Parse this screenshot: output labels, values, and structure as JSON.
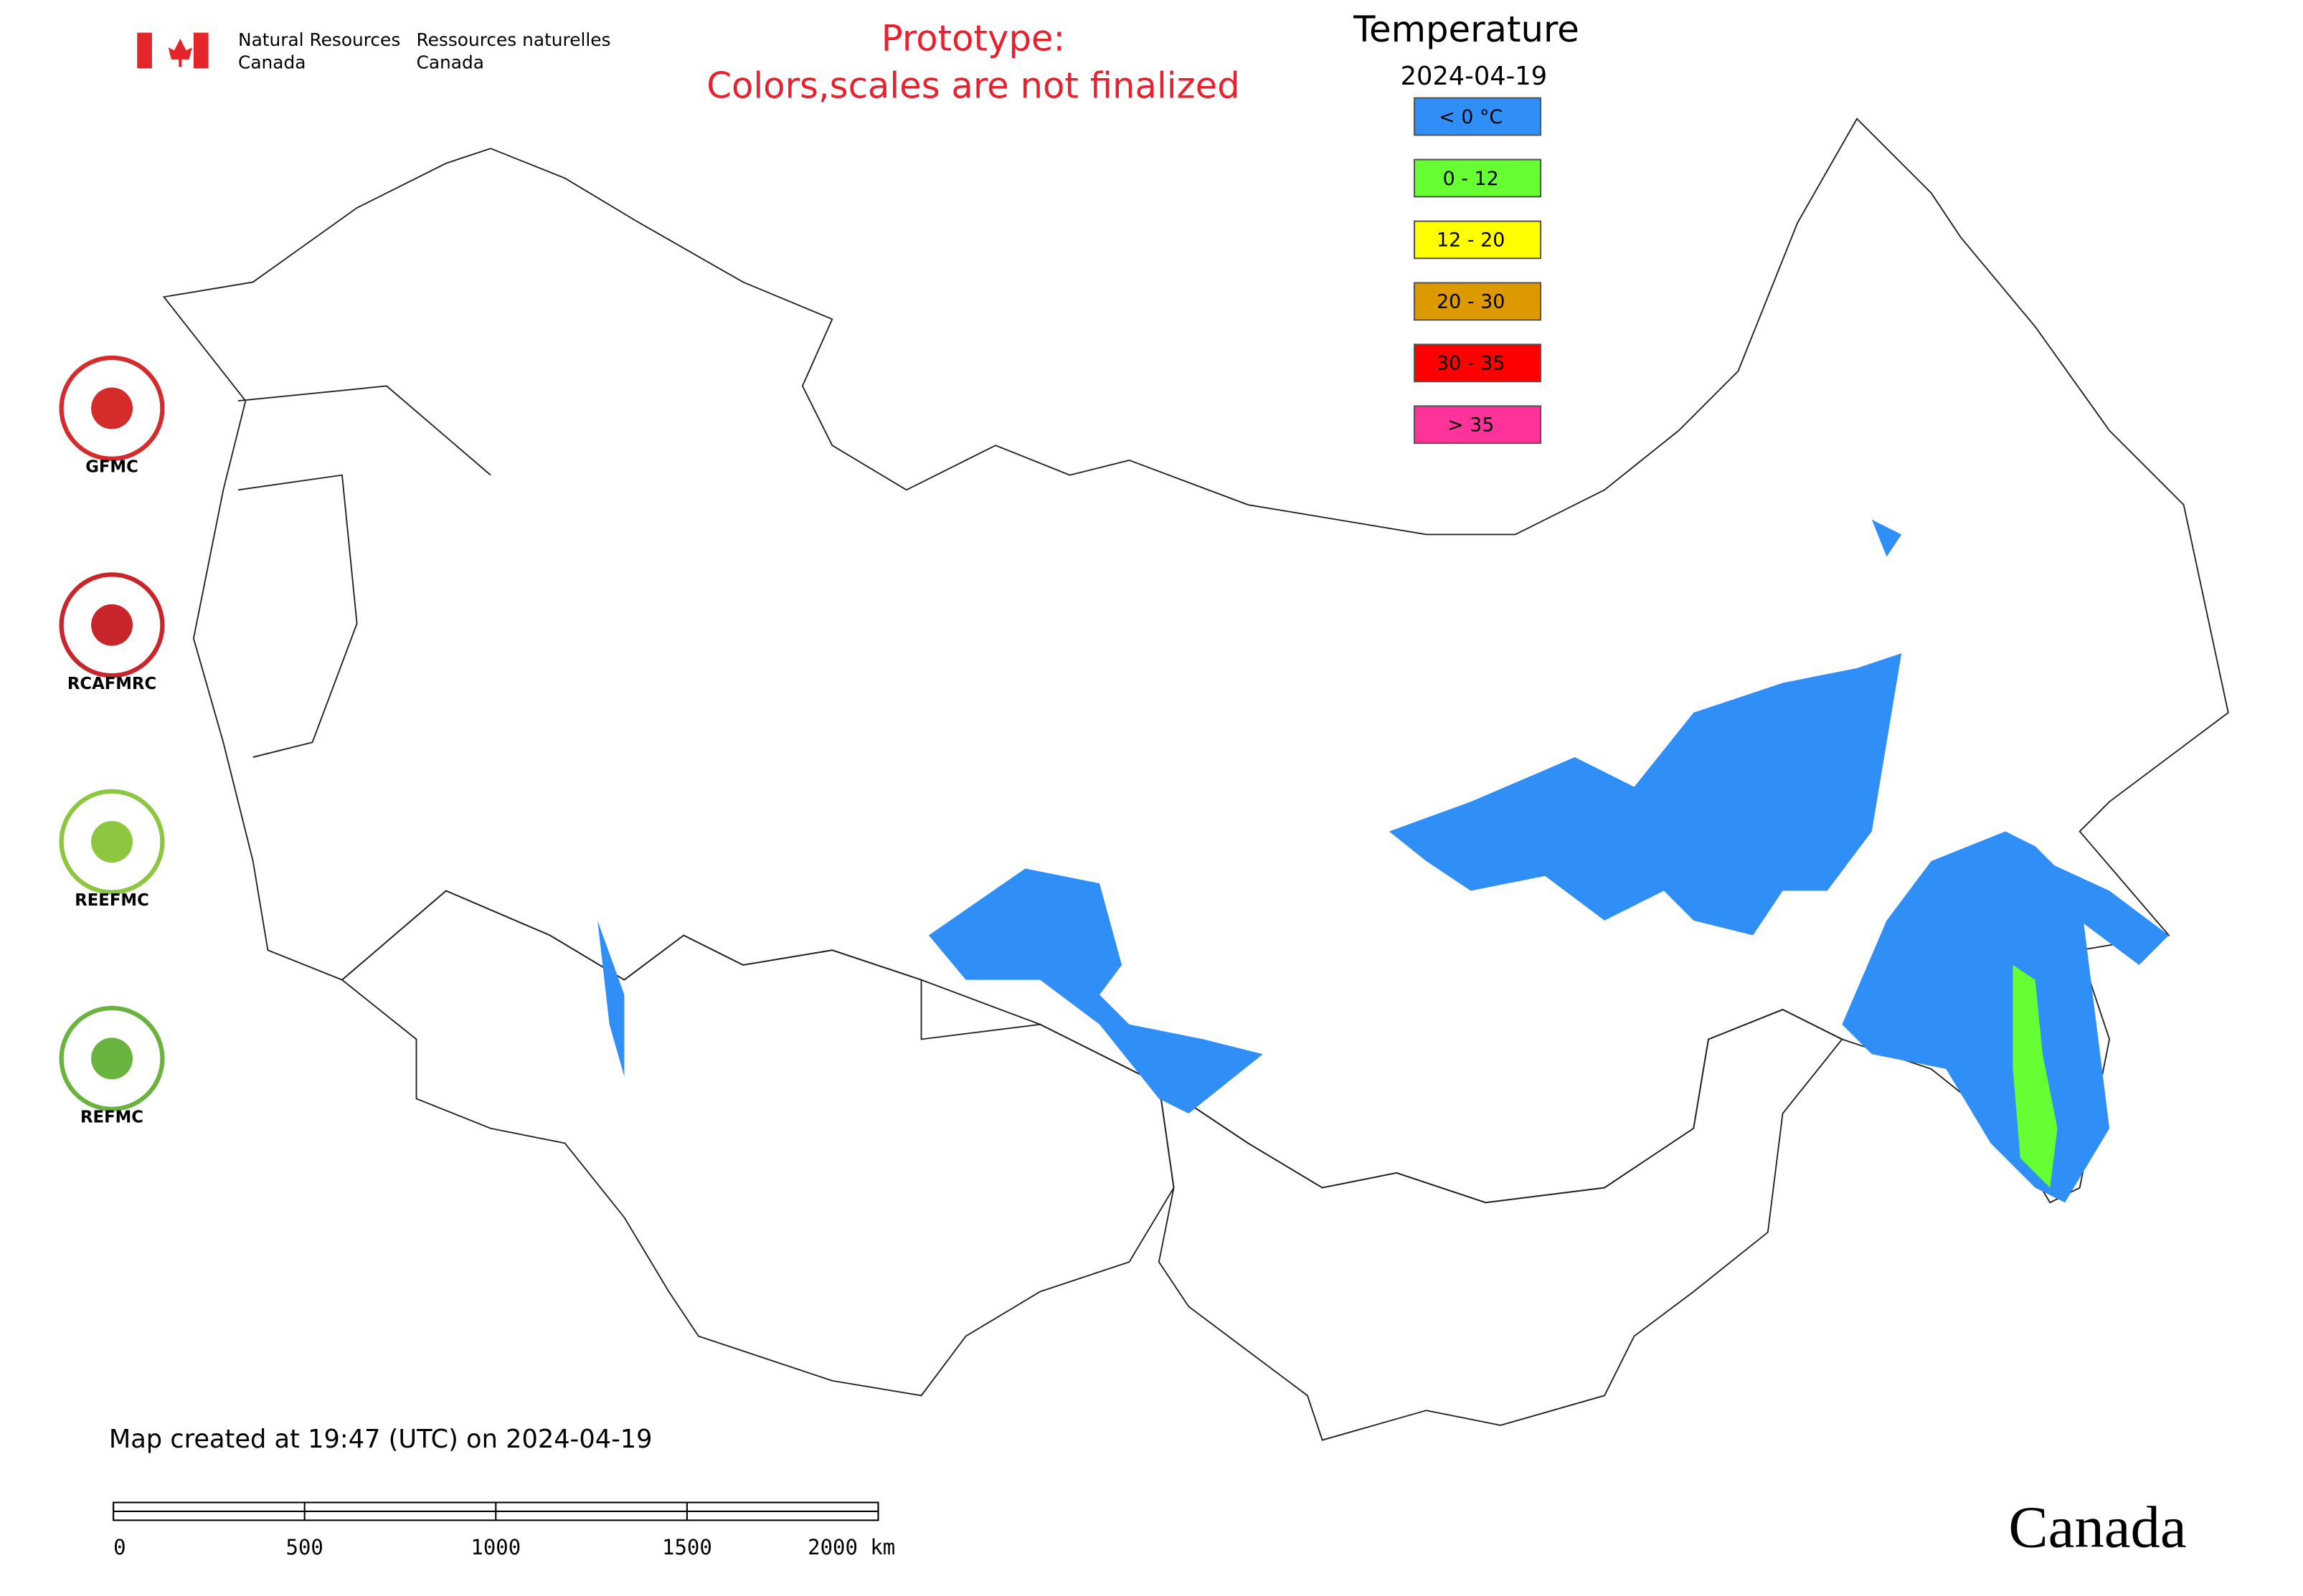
{
  "header": {
    "agency_en": [
      "Natural Resources",
      "Canada"
    ],
    "agency_fr": [
      "Ressources naturelles",
      "Canada"
    ],
    "warning": [
      "Prototype:",
      "Colors,scales are not finalized"
    ]
  },
  "legend": {
    "title": "Temperature",
    "date": "2024-04-19",
    "items": [
      {
        "label": "< 0 °C",
        "color": "#2f8ff7"
      },
      {
        "label": "0 - 12",
        "color": "#66ff33"
      },
      {
        "label": "12 - 20",
        "color": "#ffff00"
      },
      {
        "label": "20 - 30",
        "color": "#dd9900"
      },
      {
        "label": "30 - 35",
        "color": "#ff0000"
      },
      {
        "label": "> 35",
        "color": "#ff3399"
      }
    ]
  },
  "logos": [
    "GFMC",
    "RCAFMRC",
    "REEFMC",
    "REFMC"
  ],
  "footer": {
    "created": "Map created at 19:47 (UTC) on 2024-04-19",
    "scale_labels": [
      "0",
      "500",
      "1000",
      "1500",
      "2000 km"
    ],
    "wordmark": "Canada"
  }
}
